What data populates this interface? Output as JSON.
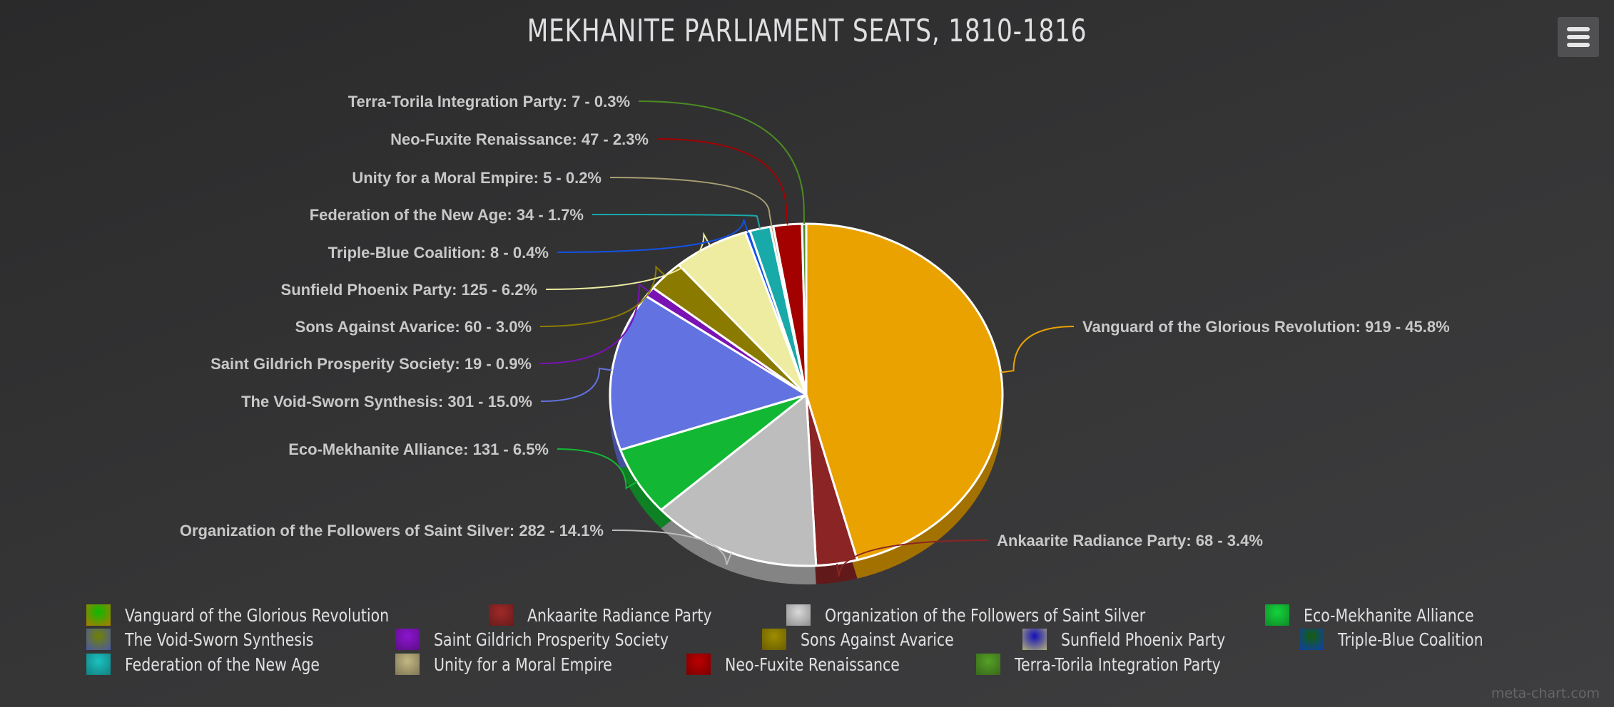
{
  "chart_data": {
    "type": "pie",
    "title": "MEKHANITE PARLIAMENT SEATS, 1810-1816",
    "three_d": true,
    "start_angle": "top, clockwise",
    "legend_placement": "bottom",
    "slices": [
      {
        "name": "Vanguard of the Glorious Revolution",
        "value": 919,
        "percent": "45.8%",
        "color": "#e9a200",
        "label": "Vanguard of the Glorious Revolution: 919 - 45.8%"
      },
      {
        "name": "Ankaarite Radiance Party",
        "value": 68,
        "percent": "3.4%",
        "color": "#8b2424",
        "label": "Ankaarite Radiance Party: 68 - 3.4%"
      },
      {
        "name": "Organization of the Followers of Saint Silver",
        "value": 282,
        "percent": "14.1%",
        "color": "#bdbdbd",
        "label": "Organization of the Followers of Saint Silver: 282 - 14.1%"
      },
      {
        "name": "Eco-Mekhanite Alliance",
        "value": 131,
        "percent": "6.5%",
        "color": "#12b834",
        "label": "Eco-Mekhanite Alliance: 131 - 6.5%"
      },
      {
        "name": "The Void-Sworn Synthesis",
        "value": 301,
        "percent": "15.0%",
        "color": "#6272e0",
        "label": "The Void-Sworn Synthesis: 301 - 15.0%"
      },
      {
        "name": "Saint Gildrich Prosperity Society",
        "value": 19,
        "percent": "0.9%",
        "color": "#7a12b4",
        "label": "Saint Gildrich Prosperity Society: 19 - 0.9%"
      },
      {
        "name": "Sons Against Avarice",
        "value": 60,
        "percent": "3.0%",
        "color": "#8a7b00",
        "label": "Sons Against Avarice: 60 - 3.0%"
      },
      {
        "name": "Sunfield Phoenix Party",
        "value": 125,
        "percent": "6.2%",
        "color": "#eeeca0",
        "label": "Sunfield Phoenix Party: 125 - 6.2%"
      },
      {
        "name": "Triple-Blue Coalition",
        "value": 8,
        "percent": "0.4%",
        "color": "#1352e8",
        "label": "Triple-Blue Coalition: 8 - 0.4%"
      },
      {
        "name": "Federation of the New Age",
        "value": 34,
        "percent": "1.7%",
        "color": "#18a9a9",
        "label": "Federation of the New Age: 34 - 1.7%"
      },
      {
        "name": "Unity for a Moral Empire",
        "value": 5,
        "percent": "0.2%",
        "color": "#a99f72",
        "label": "Unity for a Moral Empire: 5 - 0.2%"
      },
      {
        "name": "Neo-Fuxite Renaissance",
        "value": 47,
        "percent": "2.3%",
        "color": "#a30000",
        "label": "Neo-Fuxite Renaissance: 47 - 2.3%"
      },
      {
        "name": "Terra-Torila Integration Party",
        "value": 7,
        "percent": "0.3%",
        "color": "#4b8b22",
        "label": "Terra-Torila Integration Party: 7 - 0.3%"
      }
    ]
  },
  "menu": {
    "icon": "hamburger-menu-icon"
  },
  "credit": "meta-chart.com"
}
